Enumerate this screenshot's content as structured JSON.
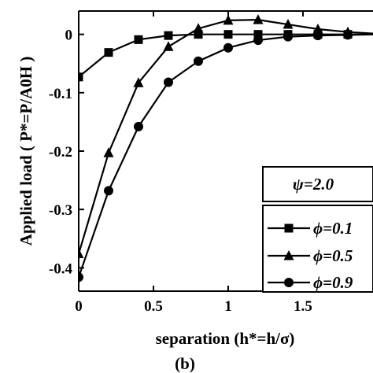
{
  "chart_data": {
    "type": "line",
    "xlabel": "separation (h*=h/σ)",
    "ylabel": "Applied load ( P*=P/A0H )",
    "panel_label": "(b)",
    "annotation": "ψ=2.0",
    "xlim": [
      0,
      2
    ],
    "ylim": [
      -0.44,
      0.04
    ],
    "x_ticks": [
      0,
      0.5,
      1,
      1.5
    ],
    "x_tick_labels": [
      "0",
      "0.5",
      "1",
      "1.5"
    ],
    "y_ticks": [
      0,
      -0.1,
      -0.2,
      -0.3,
      -0.4
    ],
    "y_tick_labels": [
      "0",
      "-0.1",
      "-0.2",
      "-0.3",
      "-0.4"
    ],
    "legend_position": "bottom-right",
    "series": [
      {
        "name": "ϕ=0.1",
        "marker": "square",
        "x": [
          0,
          0.2,
          0.4,
          0.6,
          0.8,
          1.0,
          1.2,
          1.4,
          1.6,
          1.8,
          2.0
        ],
        "y": [
          -0.073,
          -0.031,
          -0.009,
          -0.002,
          0.0,
          0.0,
          0.0,
          0.0,
          0.0,
          0.0,
          0.0
        ]
      },
      {
        "name": "ϕ=0.5",
        "marker": "triangle",
        "x": [
          0,
          0.2,
          0.4,
          0.6,
          0.8,
          1.0,
          1.2,
          1.4,
          1.6,
          1.8,
          2.0
        ],
        "y": [
          -0.376,
          -0.203,
          -0.083,
          -0.021,
          0.01,
          0.024,
          0.025,
          0.017,
          0.009,
          0.004,
          0.001
        ]
      },
      {
        "name": "ϕ=0.9",
        "marker": "circle",
        "x": [
          0,
          0.2,
          0.4,
          0.6,
          0.8,
          1.0,
          1.2,
          1.4,
          1.6,
          1.8,
          2.0
        ],
        "y": [
          -0.416,
          -0.268,
          -0.158,
          -0.082,
          -0.046,
          -0.023,
          -0.01,
          -0.004,
          -0.002,
          -0.001,
          0.0
        ]
      }
    ]
  }
}
